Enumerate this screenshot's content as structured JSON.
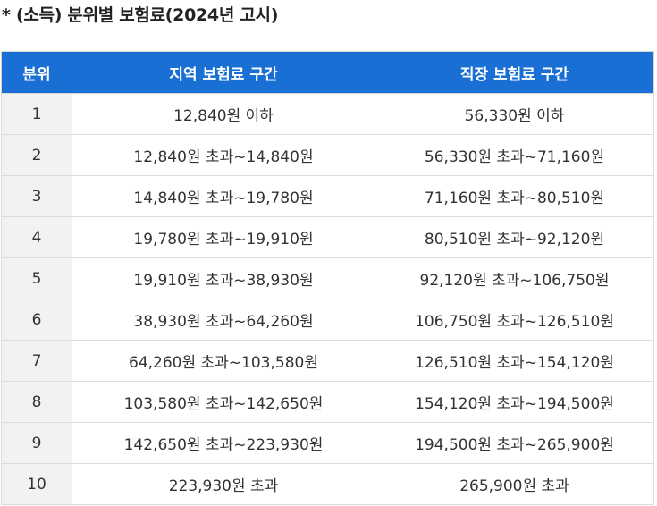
{
  "title": "* (소득) 분위별 보험료(2024년 고시)",
  "headers": {
    "rank": "분위",
    "regional": "지역 보험료 구간",
    "workplace": "직장 보험료 구간"
  },
  "rows": [
    {
      "rank": "1",
      "regional": "12,840원 이하",
      "workplace": "56,330원 이하"
    },
    {
      "rank": "2",
      "regional": "12,840원 초과~14,840원",
      "workplace": "56,330원 초과~71,160원"
    },
    {
      "rank": "3",
      "regional": "14,840원 초과~19,780원",
      "workplace": "71,160원 초과~80,510원"
    },
    {
      "rank": "4",
      "regional": "19,780원 초과~19,910원",
      "workplace": "80,510원 초과~92,120원"
    },
    {
      "rank": "5",
      "regional": "19,910원 초과~38,930원",
      "workplace": "92,120원 초과~106,750원"
    },
    {
      "rank": "6",
      "regional": "38,930원 초과~64,260원",
      "workplace": "106,750원 초과~126,510원"
    },
    {
      "rank": "7",
      "regional": "64,260원 초과~103,580원",
      "workplace": "126,510원 초과~154,120원"
    },
    {
      "rank": "8",
      "regional": "103,580원 초과~142,650원",
      "workplace": "154,120원 초과~194,500원"
    },
    {
      "rank": "9",
      "regional": "142,650원 초과~223,930원",
      "workplace": "194,500원 초과~265,900원"
    },
    {
      "rank": "10",
      "regional": "223,930원 초과",
      "workplace": "265,900원 초과"
    }
  ],
  "colors": {
    "header_bg": "#1a6fd4",
    "rank_bg": "#f2f2f2",
    "border": "#dcdcdc"
  }
}
